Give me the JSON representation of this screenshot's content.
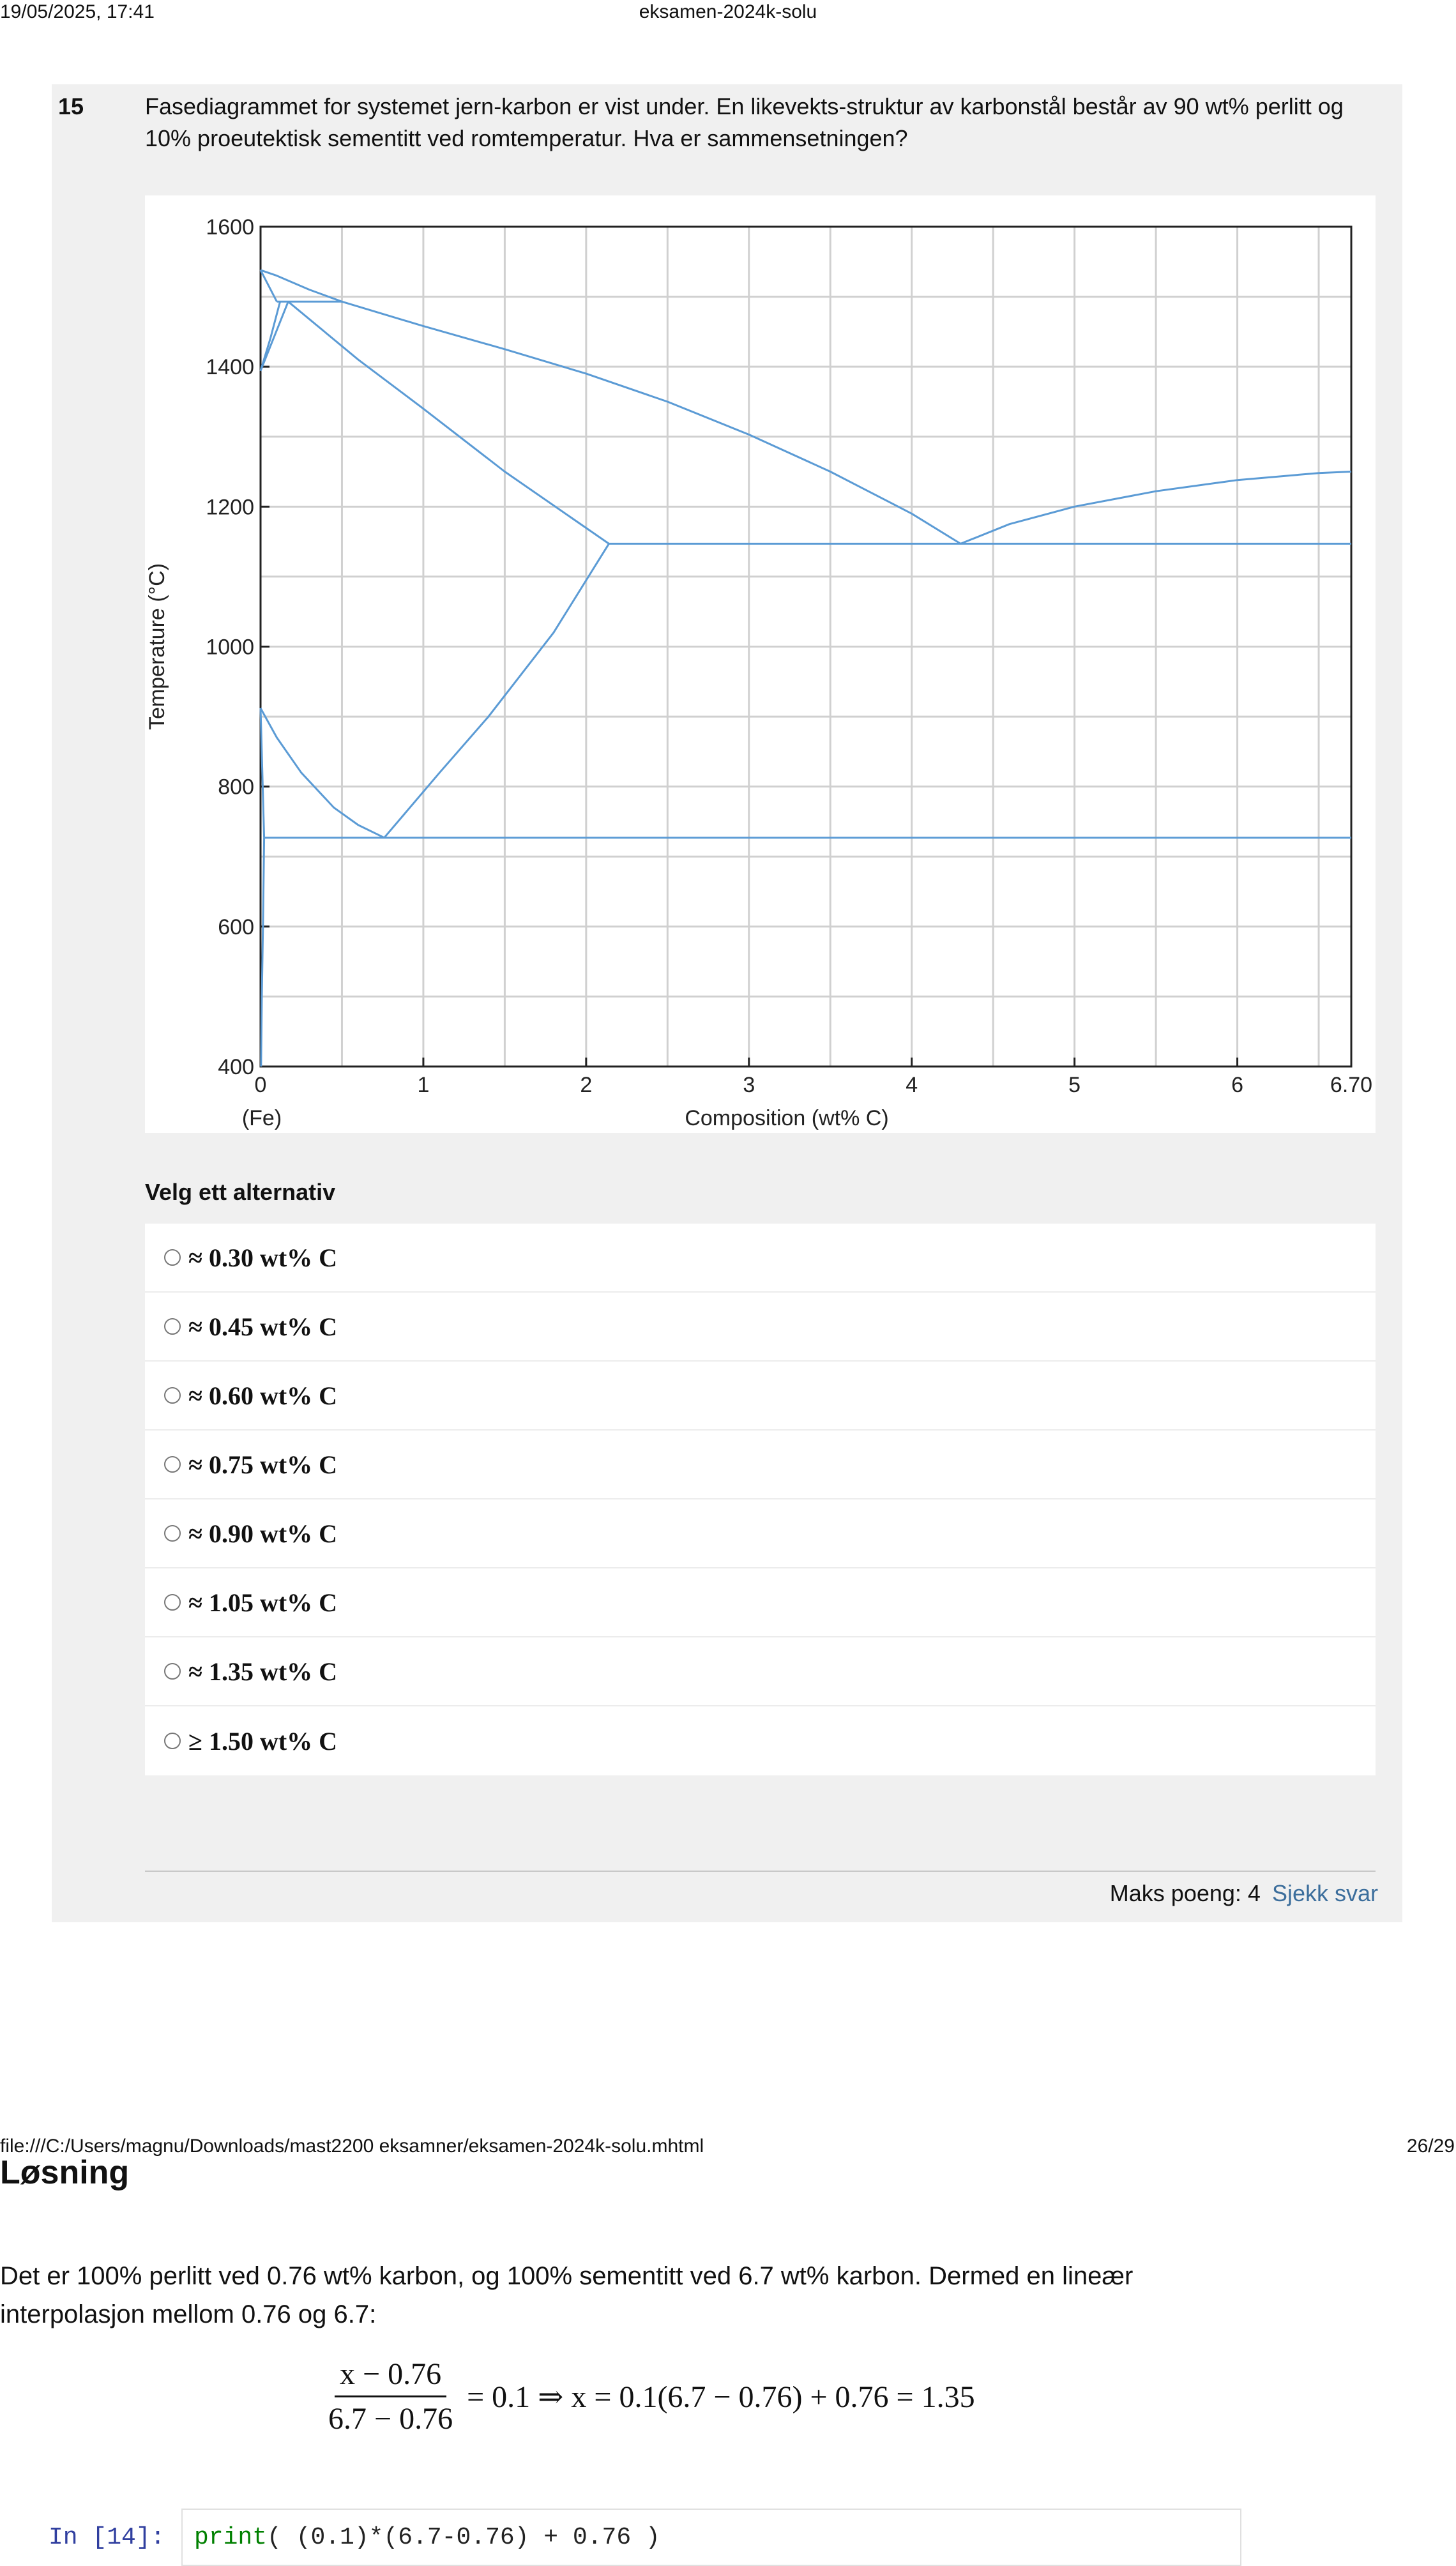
{
  "print_header": {
    "datetime": "19/05/2025, 17:41",
    "title": "eksamen-2024k-solu"
  },
  "question": {
    "number": "15",
    "text": "Fasediagrammet for systemet jern-karbon er vist under. En likevekts-struktur av karbonstål består av 90 wt% perlitt og 10% proeutektisk sementitt ved romtemperatur. Hva er sammensetningen?",
    "alternatives_label": "Velg ett alternativ",
    "options": [
      "≈ 0.30 wt% C",
      "≈ 0.45 wt% C",
      "≈ 0.60 wt% C",
      "≈ 0.75 wt% C",
      "≈ 0.90 wt% C",
      "≈ 1.05 wt% C",
      "≈ 1.35 wt% C",
      "≥ 1.50 wt% C"
    ],
    "max_points_label": "Maks poeng: 4",
    "check_answer_label": "Sjekk svar"
  },
  "chart_data": {
    "type": "line",
    "xlabel": "Composition (wt% C)",
    "ylabel": "Temperature (°C)",
    "x_tick_labels": [
      "0",
      "1",
      "2",
      "3",
      "4",
      "5",
      "6",
      "6.70"
    ],
    "x_tick_values": [
      0,
      1,
      2,
      3,
      4,
      5,
      6,
      6.7
    ],
    "x_sub_label": "(Fe)",
    "y_tick_labels": [
      "400",
      "600",
      "800",
      "1000",
      "1200",
      "1400",
      "1600"
    ],
    "y_tick_values": [
      400,
      600,
      800,
      1000,
      1200,
      1400,
      1600
    ],
    "xlim": [
      0,
      6.7
    ],
    "ylim": [
      400,
      1600
    ],
    "grid": true,
    "line_color": "#5b9bd5",
    "series": [
      {
        "x": [
          0,
          0.1,
          0.3,
          0.5
        ],
        "y": [
          1538,
          1530,
          1510,
          1493
        ]
      },
      {
        "x": [
          0,
          0.1
        ],
        "y": [
          1538,
          1493
        ]
      },
      {
        "x": [
          0,
          0.06,
          0.12
        ],
        "y": [
          1394,
          1440,
          1493
        ]
      },
      {
        "x": [
          0.1,
          0.5
        ],
        "y": [
          1493,
          1493
        ]
      },
      {
        "x": [
          0,
          0.17
        ],
        "y": [
          1394,
          1493
        ]
      },
      {
        "x": [
          0.17,
          0.6,
          1.0,
          1.5,
          2.14
        ],
        "y": [
          1493,
          1410,
          1340,
          1250,
          1147
        ]
      },
      {
        "x": [
          0.5,
          1.0,
          1.5,
          2.0,
          2.5,
          3.0,
          3.5,
          4.0,
          4.3
        ],
        "y": [
          1493,
          1458,
          1425,
          1390,
          1350,
          1303,
          1250,
          1190,
          1147
        ]
      },
      {
        "x": [
          4.3,
          4.6,
          5.0,
          5.5,
          6.0,
          6.5,
          6.7
        ],
        "y": [
          1147,
          1175,
          1200,
          1222,
          1238,
          1248,
          1250
        ]
      },
      {
        "x": [
          2.14,
          6.7
        ],
        "y": [
          1147,
          1147
        ]
      },
      {
        "x": [
          2.14,
          1.8,
          1.4,
          1.1,
          0.76
        ],
        "y": [
          1147,
          1020,
          900,
          820,
          727
        ]
      },
      {
        "x": [
          0,
          0.1,
          0.25,
          0.45,
          0.6,
          0.76
        ],
        "y": [
          912,
          870,
          820,
          770,
          745,
          727
        ]
      },
      {
        "x": [
          0,
          0.022
        ],
        "y": [
          912,
          727
        ]
      },
      {
        "x": [
          0.022,
          6.7
        ],
        "y": [
          727,
          727
        ]
      },
      {
        "x": [
          0.022,
          0.015,
          0.008,
          0.003
        ],
        "y": [
          727,
          600,
          500,
          400
        ]
      }
    ]
  },
  "print_footer": {
    "path": "file:///C:/Users/magnu/Downloads/mast2200 eksamner/eksamen-2024k-solu.mhtml",
    "page": "26/29"
  },
  "solution": {
    "heading": "Løsning",
    "text": "Det er 100% perlitt ved 0.76 wt% karbon, og 100% sementitt ved 6.7 wt% karbon. Dermed en lineær interpolasjon mellom 0.76 og 6.7:",
    "equation": {
      "numerator": "x − 0.76",
      "denominator": "6.7 − 0.76",
      "rest": "= 0.1 ⇒ x = 0.1(6.7 − 0.76) + 0.76 = 1.35"
    }
  },
  "code_cell": {
    "prompt": "In [14]:",
    "code_keyword": "print",
    "code_rest": "( (0.1)*(6.7-0.76) + 0.76 )"
  }
}
